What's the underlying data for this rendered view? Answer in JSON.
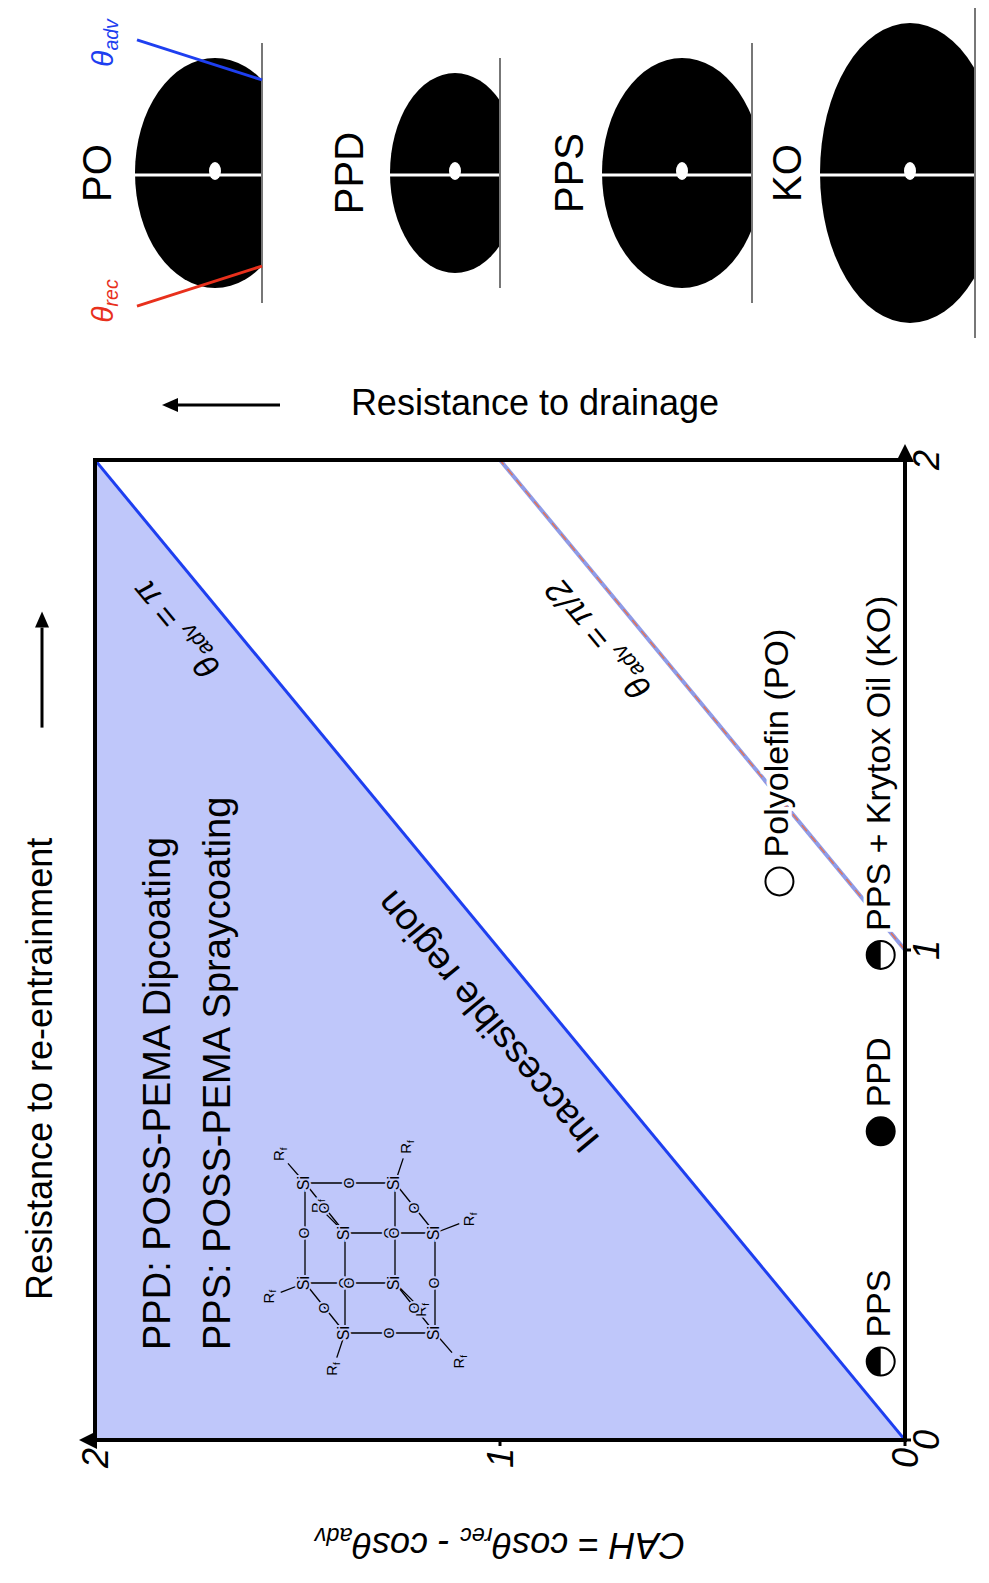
{
  "chart_data": {
    "type": "scatter",
    "y_label": [
      {
        "t": "CAH = cosθ"
      },
      {
        "sub": "rec"
      },
      {
        "t": " - cosθ"
      },
      {
        "sub": "adv"
      }
    ],
    "x_annotation": "Resistance to re-entrainment",
    "y_annotation": "Resistance to drainage",
    "xlim": [
      0,
      2
    ],
    "xticks": [
      0,
      1,
      2
    ],
    "ylim": [
      0,
      2
    ],
    "yticks": [
      0,
      1,
      2
    ],
    "series": [
      {
        "name": "PPS",
        "x": [
          0.16
        ],
        "values": [
          0.06
        ],
        "marker": "half"
      },
      {
        "name": "PPD",
        "x": [
          0.63
        ],
        "values": [
          0.06
        ],
        "marker": "filled"
      },
      {
        "name": "PPS + Krytox Oil (KO)",
        "x": [
          0.99
        ],
        "values": [
          0.06
        ],
        "marker": "half"
      },
      {
        "name": "Polyolefin (PO)",
        "x": [
          1.14
        ],
        "values": [
          0.31
        ],
        "marker": "open"
      }
    ],
    "lines": [
      {
        "label": [
          {
            "t": "θ"
          },
          {
            "sub": "adv"
          },
          {
            "t": " = π"
          }
        ],
        "x": [
          0,
          2
        ],
        "values": [
          0,
          2
        ],
        "color": "#1e3ff0",
        "line_style": "solid"
      },
      {
        "label": [
          {
            "t": "θ"
          },
          {
            "sub": "adv"
          },
          {
            "t": " = π/2"
          }
        ],
        "x": [
          1,
          2
        ],
        "values": [
          0,
          1
        ],
        "color": "#8f9be6",
        "line_style": "dashed"
      }
    ],
    "region": {
      "label": "Inaccessible region",
      "x": [
        0,
        2
      ],
      "lower": [
        0,
        2
      ],
      "upper": [
        2,
        2
      ],
      "color": "#bfc7fa"
    },
    "notes": [
      "PPD: POSS-PEMA Dipcoating",
      "PPS: POSS-PEMA Spraycoating"
    ],
    "structure": {
      "silicon": "Si",
      "oxygen": "O",
      "substituent": [
        {
          "t": "R"
        },
        {
          "sub": "f"
        }
      ]
    },
    "droplets": [
      "PO",
      "PPD",
      "PPS",
      "KO"
    ],
    "angle_labels": {
      "advancing": [
        {
          "t": "θ"
        },
        {
          "sub": "adv"
        }
      ],
      "receding": [
        {
          "t": "θ"
        },
        {
          "sub": "rec"
        }
      ]
    }
  }
}
